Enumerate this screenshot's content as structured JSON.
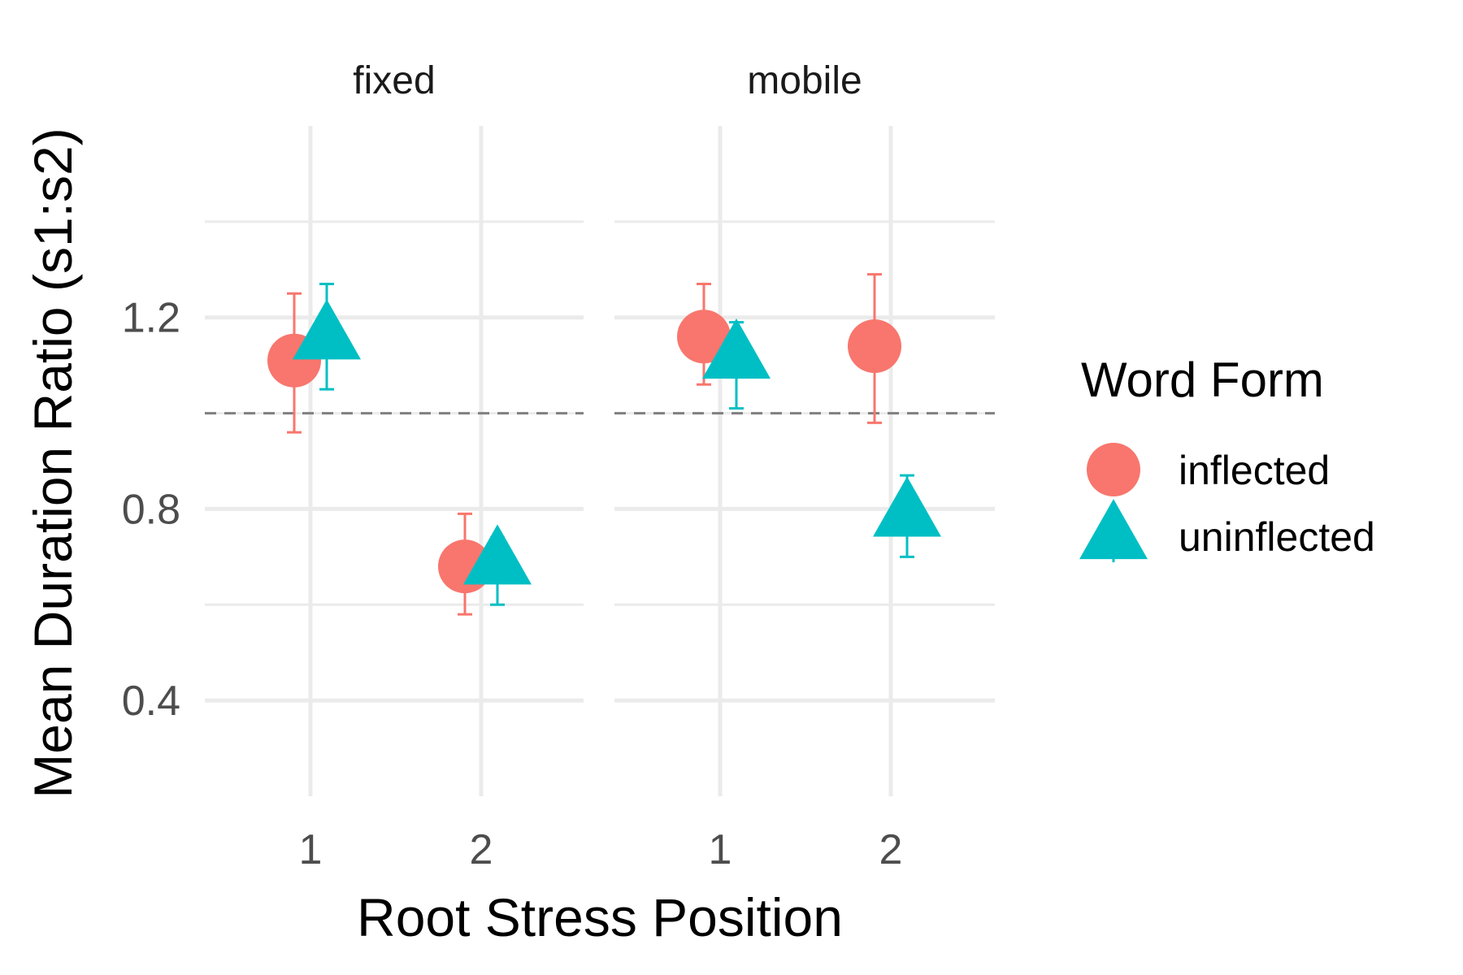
{
  "chart_data": {
    "type": "scatter",
    "xlabel": "Root Stress Position",
    "ylabel": "Mean Duration Ratio (s1:s2)",
    "ylim": [
      0.2,
      1.6
    ],
    "yticks": [
      "0.4",
      "0.8",
      "1.2"
    ],
    "ytick_values": [
      0.4,
      0.8,
      1.2
    ],
    "x_categories": [
      "1",
      "2"
    ],
    "reference_line": 1.0,
    "reference_line_style": "dashed",
    "grid": true,
    "legend": {
      "title": "Word Form",
      "position": "right",
      "entries": [
        {
          "label": "inflected",
          "shape": "circle",
          "color": "#F8766D"
        },
        {
          "label": "uninflected",
          "shape": "triangle",
          "color": "#00BFC4"
        }
      ]
    },
    "facets": [
      {
        "strip": "fixed",
        "series": [
          {
            "name": "inflected",
            "points": [
              {
                "x": "1",
                "y": 1.11,
                "ymin": 0.96,
                "ymax": 1.25
              },
              {
                "x": "2",
                "y": 0.68,
                "ymin": 0.58,
                "ymax": 0.79
              }
            ]
          },
          {
            "name": "uninflected",
            "points": [
              {
                "x": "1",
                "y": 1.16,
                "ymin": 1.05,
                "ymax": 1.27
              },
              {
                "x": "2",
                "y": 0.69,
                "ymin": 0.6,
                "ymax": 0.74
              }
            ]
          }
        ]
      },
      {
        "strip": "mobile",
        "series": [
          {
            "name": "inflected",
            "points": [
              {
                "x": "1",
                "y": 1.16,
                "ymin": 1.06,
                "ymax": 1.27
              },
              {
                "x": "2",
                "y": 1.14,
                "ymin": 0.98,
                "ymax": 1.29
              }
            ]
          },
          {
            "name": "uninflected",
            "points": [
              {
                "x": "1",
                "y": 1.12,
                "ymin": 1.01,
                "ymax": 1.19
              },
              {
                "x": "2",
                "y": 0.79,
                "ymin": 0.7,
                "ymax": 0.87
              }
            ]
          }
        ]
      }
    ]
  }
}
